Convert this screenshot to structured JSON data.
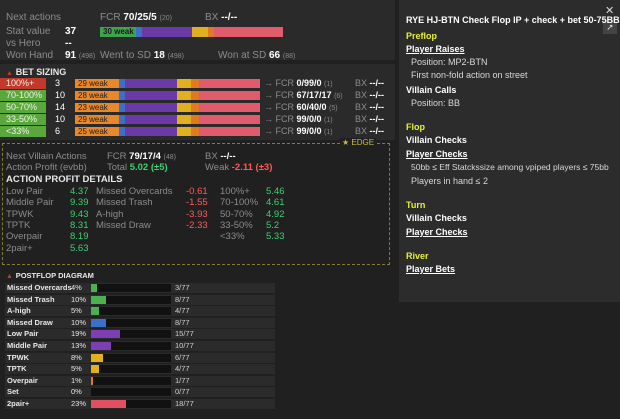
{
  "stats": {
    "next_actions_label": "Next actions",
    "stat_value_label": "Stat value",
    "stat_value": "37",
    "vs_hero_label": "vs Hero",
    "vs_hero_value": "--",
    "won_hand_label": "Won Hand",
    "won_hand_value": "91",
    "won_hand_sample": "(498)",
    "fcr_label": "FCR",
    "fcr_value": "70/25/5",
    "fcr_sample": "(20)",
    "bx_label": "BX",
    "bx_value": "--/--",
    "weak_label": "30 weak",
    "went_sd_label": "Went to SD",
    "went_sd_value": "18",
    "went_sd_sample": "(498)",
    "won_sd_label": "Won at SD",
    "won_sd_value": "66",
    "won_sd_sample": "(88)"
  },
  "bet_sizing": {
    "title": "BET SIZING",
    "rows": [
      {
        "size": "100%+",
        "count": "3",
        "weak": "29 weak",
        "fcr": "0/99/0",
        "fcr_sample": "(1)",
        "bx": "--/--",
        "left_color": "#c0392b"
      },
      {
        "size": "70-100%",
        "count": "10",
        "weak": "28 weak",
        "fcr": "67/17/17",
        "fcr_sample": "(6)",
        "bx": "--/--",
        "left_color": "#5aa83c"
      },
      {
        "size": "50-70%",
        "count": "14",
        "weak": "23 weak",
        "fcr": "60/40/0",
        "fcr_sample": "(5)",
        "bx": "--/--",
        "left_color": "#5aa83c"
      },
      {
        "size": "33-50%",
        "count": "10",
        "weak": "29 weak",
        "fcr": "99/0/0",
        "fcr_sample": "(1)",
        "bx": "--/--",
        "left_color": "#5aa83c"
      },
      {
        "size": "<33%",
        "count": "6",
        "weak": "25 weak",
        "fcr": "99/0/0",
        "fcr_sample": "(1)",
        "bx": "--/--",
        "left_color": "#5aa83c"
      }
    ]
  },
  "villain": {
    "next_label": "Next Villain Actions",
    "fcr_label": "FCR",
    "fcr_value": "79/17/4",
    "fcr_sample": "(48)",
    "bx_label": "BX",
    "bx_value": "--/--",
    "profit_label": "Action Profit (evbb)",
    "total_label": "Total",
    "total_value": "5.02 (±5)",
    "weak_label": "Weak",
    "weak_value": "-2.11 (±3)",
    "edge_label": "EDGE",
    "details_title": "ACTION PROFIT DETAILS"
  },
  "profit_details": {
    "col1": [
      {
        "label": "Low Pair",
        "value": "4.37"
      },
      {
        "label": "Middle Pair",
        "value": "9.39"
      },
      {
        "label": "TPWK",
        "value": "9.43"
      },
      {
        "label": "TPTK",
        "value": "8.31"
      },
      {
        "label": "Overpair",
        "value": "8.19"
      },
      {
        "label": "2pair+",
        "value": "5.63"
      }
    ],
    "col2": [
      {
        "label": "Missed Overcards",
        "value": "-0.61"
      },
      {
        "label": "Missed Trash",
        "value": "-1.55"
      },
      {
        "label": "A-high",
        "value": "-3.93"
      },
      {
        "label": "Missed Draw",
        "value": "-2.33"
      }
    ],
    "col3": [
      {
        "label": "100%+",
        "value": "5.46"
      },
      {
        "label": "70-100%",
        "value": "4.61"
      },
      {
        "label": "50-70%",
        "value": "4.92"
      },
      {
        "label": "33-50%",
        "value": "5.2"
      },
      {
        "label": "<33%",
        "value": "5.33"
      }
    ]
  },
  "postflop": {
    "title": "POSTFLOP DIAGRAM",
    "rows": [
      {
        "name": "Missed Overcards",
        "pct": "4%",
        "frac": "3/77",
        "level": 0.04,
        "color": "#4caf50"
      },
      {
        "name": "Missed Trash",
        "pct": "10%",
        "frac": "8/77",
        "level": 0.1,
        "color": "#4caf50"
      },
      {
        "name": "A-high",
        "pct": "5%",
        "frac": "4/77",
        "level": 0.05,
        "color": "#4caf50"
      },
      {
        "name": "Missed Draw",
        "pct": "10%",
        "frac": "8/77",
        "level": 0.1,
        "color": "#3b6fc9"
      },
      {
        "name": "Low Pair",
        "pct": "19%",
        "frac": "15/77",
        "level": 0.19,
        "color": "#7b3fb3"
      },
      {
        "name": "Middle Pair",
        "pct": "13%",
        "frac": "10/77",
        "level": 0.13,
        "color": "#7b3fb3"
      },
      {
        "name": "TPWK",
        "pct": "8%",
        "frac": "6/77",
        "level": 0.08,
        "color": "#e0b020"
      },
      {
        "name": "TPTK",
        "pct": "5%",
        "frac": "4/77",
        "level": 0.05,
        "color": "#e0b020"
      },
      {
        "name": "Overpair",
        "pct": "1%",
        "frac": "1/77",
        "level": 0.01,
        "color": "#e07a20"
      },
      {
        "name": "Set",
        "pct": "0%",
        "frac": "0/77",
        "level": 0.0,
        "color": "#e05050"
      },
      {
        "name": "2pair+",
        "pct": "23%",
        "frac": "18/77",
        "level": 0.23,
        "color": "#e05060"
      }
    ]
  },
  "right": {
    "title": "RYE HJ-BTN Check Flop IP + check + bet 50-75BB",
    "preflop": "Preflop",
    "player_raises": "Player Raises",
    "position_mp2": "Position: MP2-BTN",
    "first_nonfold": "First non-fold action on street",
    "villain_calls": "Villain Calls",
    "position_bb": "Position: BB",
    "flop": "Flop",
    "villain_checks_1": "Villain Checks",
    "player_checks_1": "Player Checks",
    "eff_stack": "50bb ≤ Eff Statckssize among vpiped players ≤ 75bb",
    "players_in_hand": "Players in hand ≤ 2",
    "turn": "Turn",
    "villain_checks_2": "Villain Checks",
    "player_checks_2": "Player Checks",
    "river": "River",
    "player_bets": "Player Bets"
  },
  "icons": {
    "close": "close-icon",
    "pin": "pin-icon",
    "star": "star-icon"
  }
}
